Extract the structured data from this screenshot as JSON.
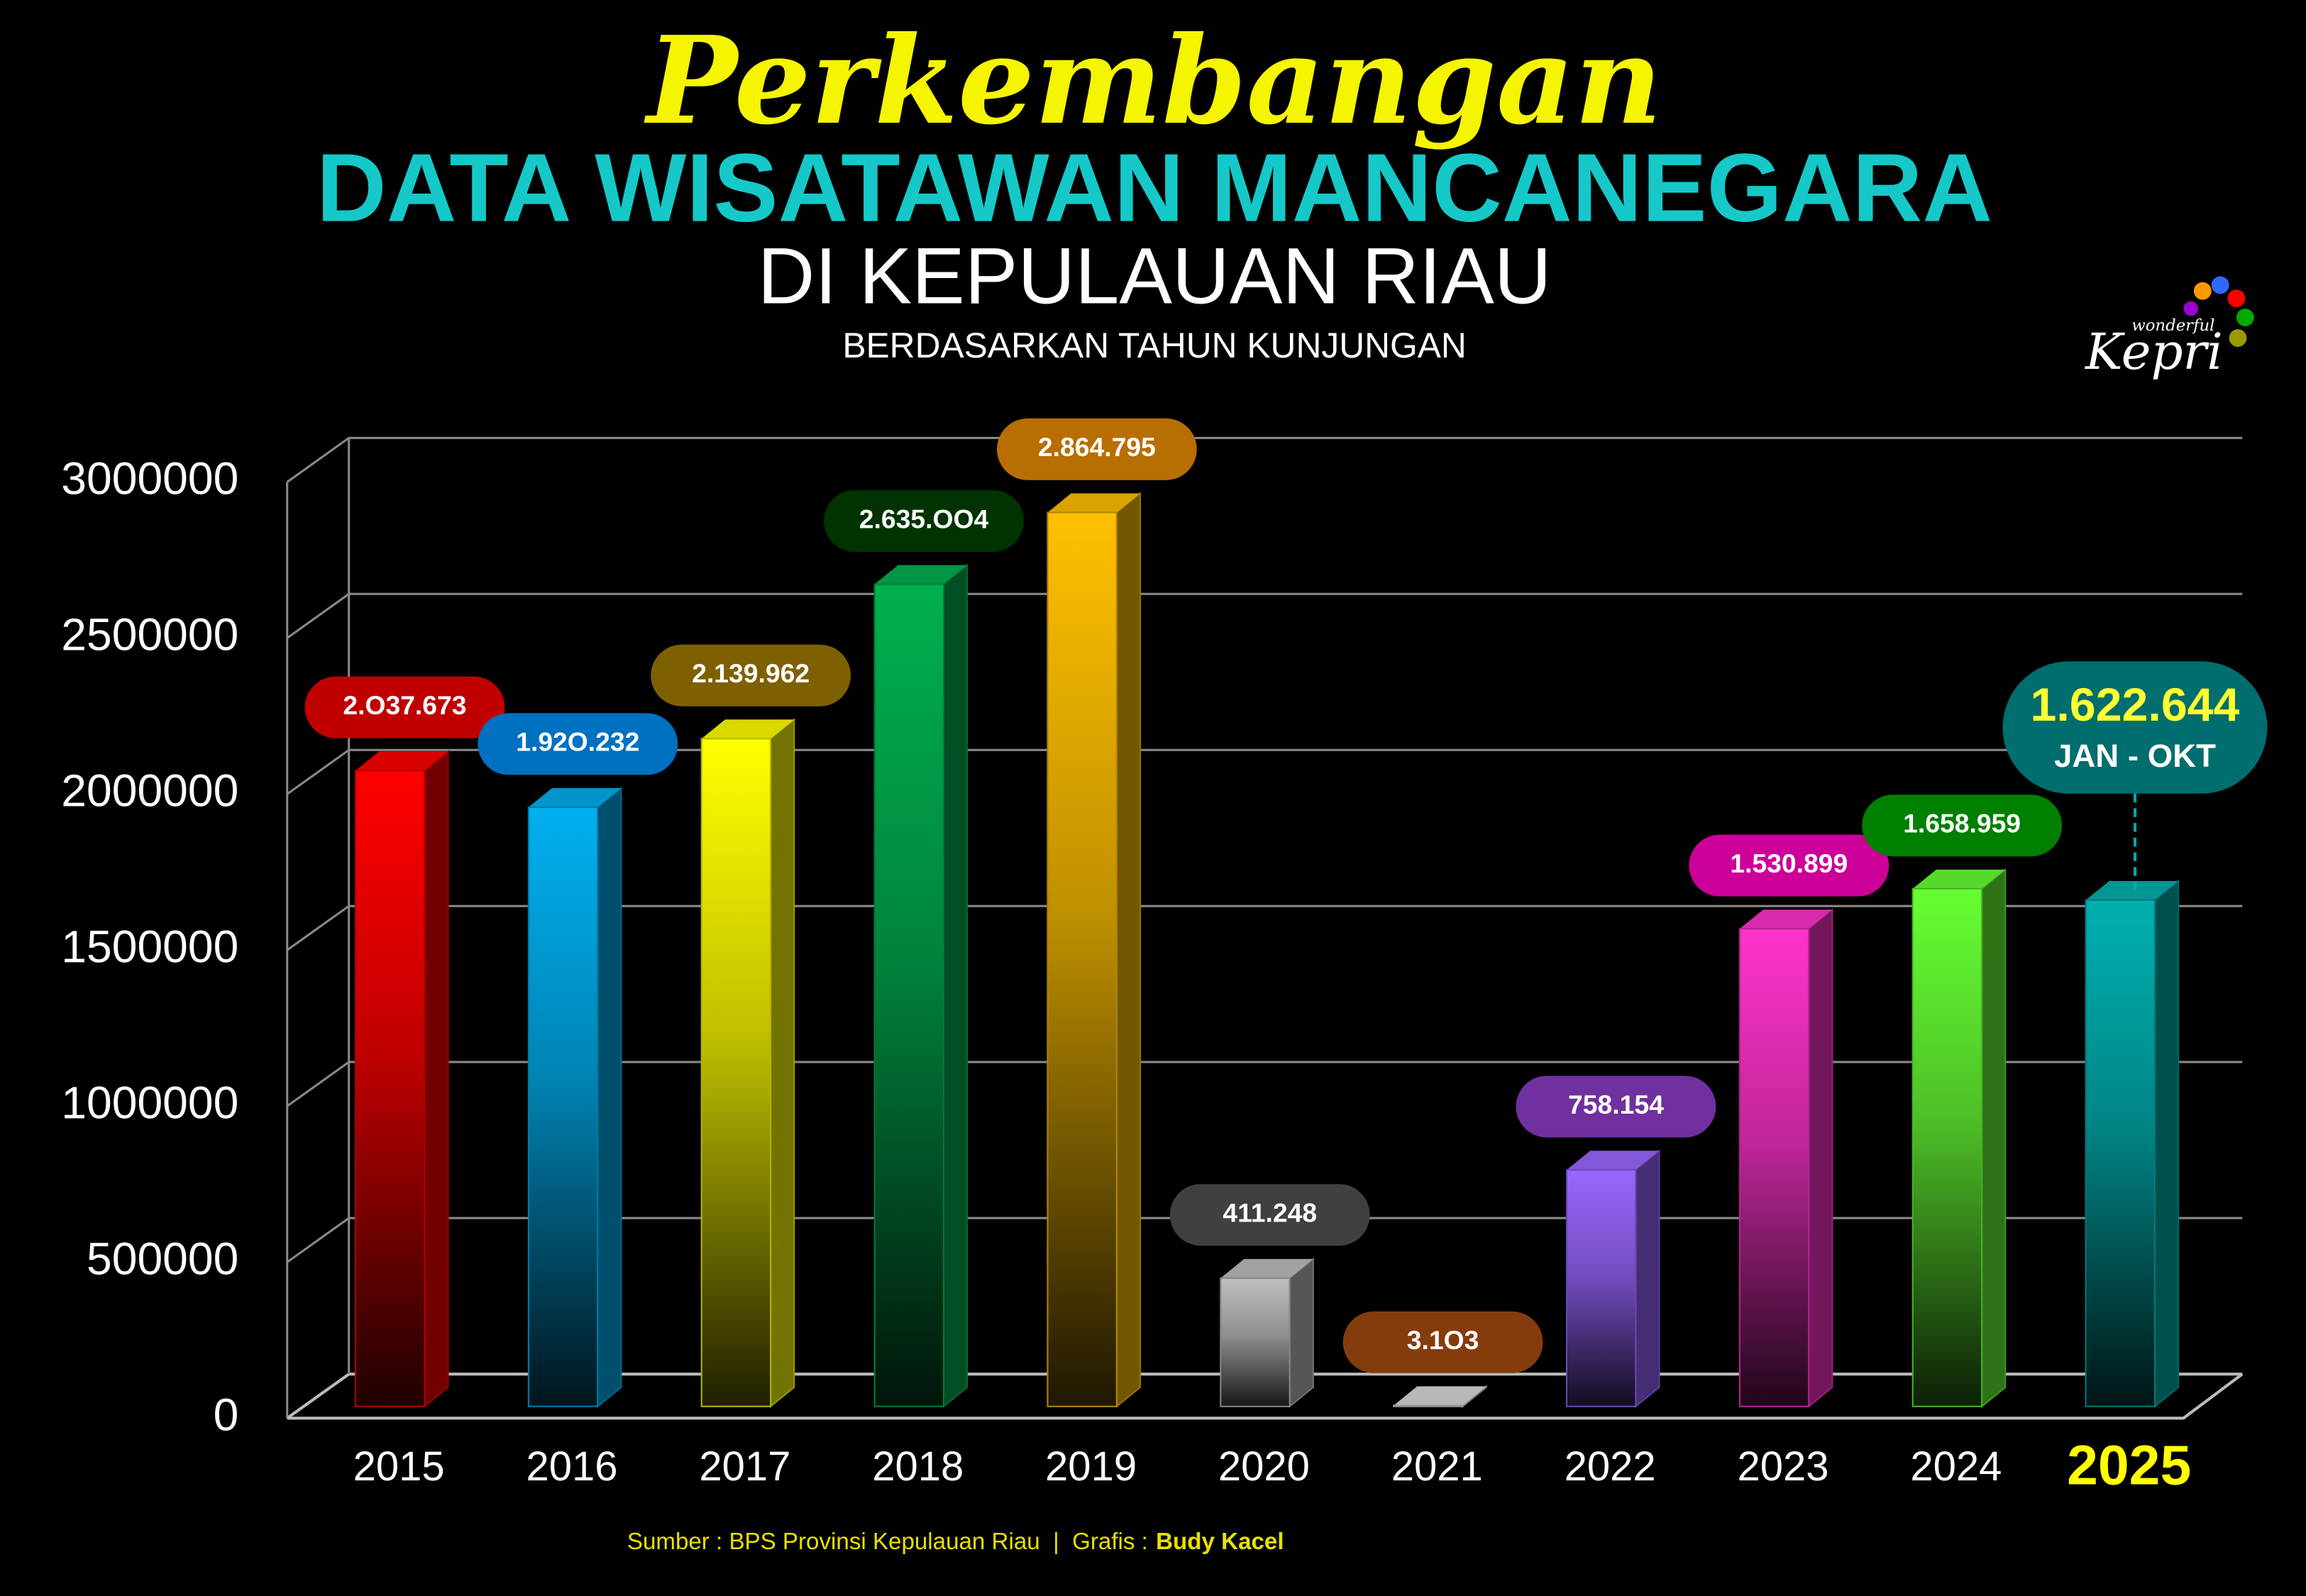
{
  "chart_data": {
    "type": "bar",
    "title": "Perkembangan",
    "subtitle": "DATA WISATAWAN MANCANEGARA",
    "subtitle2": "DI KEPULAUAN RIAU",
    "subtitle3": "BERDASARKAN TAHUN KUNJUNGAN",
    "logo": {
      "small": "wonderful",
      "big": "Kepri"
    },
    "categories": [
      "2015",
      "2016",
      "2017",
      "2018",
      "2019",
      "2020",
      "2021",
      "2022",
      "2023",
      "2024",
      "2025"
    ],
    "values": [
      2037673,
      1920232,
      2139962,
      2635004,
      2864795,
      411248,
      3103,
      758154,
      1530899,
      1658959,
      1622644
    ],
    "value_labels": [
      "2.O37.673",
      "1.92O.232",
      "2.139.962",
      "2.635.OO4",
      "2.864.795",
      "411.248",
      "3.1O3",
      "758.154",
      "1.530.899",
      "1.658.959",
      "1.622.644"
    ],
    "colors": [
      "#ff0000",
      "#00b0f0",
      "#ffff00",
      "#00b050",
      "#ffc000",
      "#bfbfbf",
      "#d9d9d9",
      "#9966ff",
      "#ff33cc",
      "#66ff33",
      "#00b0b0"
    ],
    "label_colors": [
      "#c00000",
      "#0070c0",
      "#7f6000",
      "#003300",
      "#b86e00",
      "#404040",
      "#843c0c",
      "#7030a0",
      "#cc0099",
      "#008000",
      "#006e6e"
    ],
    "annotation": "JAN - OKT",
    "ylim": [
      0,
      3000000
    ],
    "yticks": [
      0,
      500000,
      1000000,
      1500000,
      2000000,
      2500000,
      3000000
    ],
    "grid": true,
    "source": "Sumber : BPS Provinsi Kepulauan Riau  |  Grafis : ",
    "author": "Budy Kacel"
  }
}
